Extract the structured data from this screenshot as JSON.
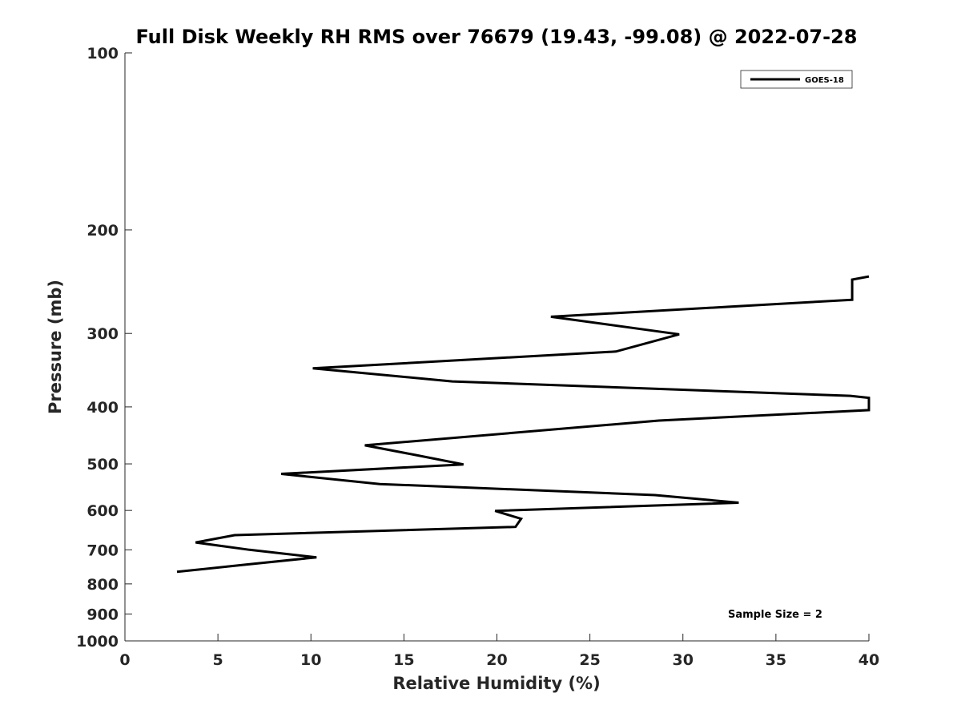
{
  "chart_data": {
    "type": "line",
    "title": "Full Disk Weekly RH RMS over 76679 (19.43, -99.08) @ 2022-07-28",
    "xlabel": "Relative Humidity (%)",
    "ylabel": "Pressure (mb)",
    "xlim": [
      0,
      40
    ],
    "ylim": [
      1000,
      100
    ],
    "yscale": "log",
    "x_ticks": [
      0,
      5,
      10,
      15,
      20,
      25,
      30,
      35,
      40
    ],
    "y_ticks": [
      100,
      200,
      300,
      400,
      500,
      600,
      700,
      800,
      900,
      1000
    ],
    "grid": false,
    "legend_position": "top-right",
    "line_color": "#000000",
    "series": [
      {
        "name": "GOES-18",
        "points": [
          [
            40.0,
            240
          ],
          [
            39.1,
            243
          ],
          [
            39.1,
            263
          ],
          [
            22.9,
            281
          ],
          [
            29.8,
            301
          ],
          [
            26.4,
            322
          ],
          [
            10.1,
            344
          ],
          [
            17.6,
            362
          ],
          [
            39.0,
            383
          ],
          [
            40.0,
            386
          ],
          [
            40.0,
            405
          ],
          [
            28.7,
            422
          ],
          [
            12.9,
            465
          ],
          [
            15.5,
            482
          ],
          [
            18.2,
            501
          ],
          [
            8.4,
            520
          ],
          [
            13.7,
            541
          ],
          [
            28.5,
            565
          ],
          [
            33.0,
            582
          ],
          [
            19.9,
            601
          ],
          [
            21.3,
            620
          ],
          [
            21.0,
            640
          ],
          [
            5.9,
            661
          ],
          [
            3.8,
            680
          ],
          [
            6.7,
            700
          ],
          [
            10.3,
            721
          ],
          [
            6.3,
            743
          ],
          [
            2.8,
            763
          ]
        ]
      }
    ],
    "annotations": [
      "Sample Size = 2"
    ]
  }
}
